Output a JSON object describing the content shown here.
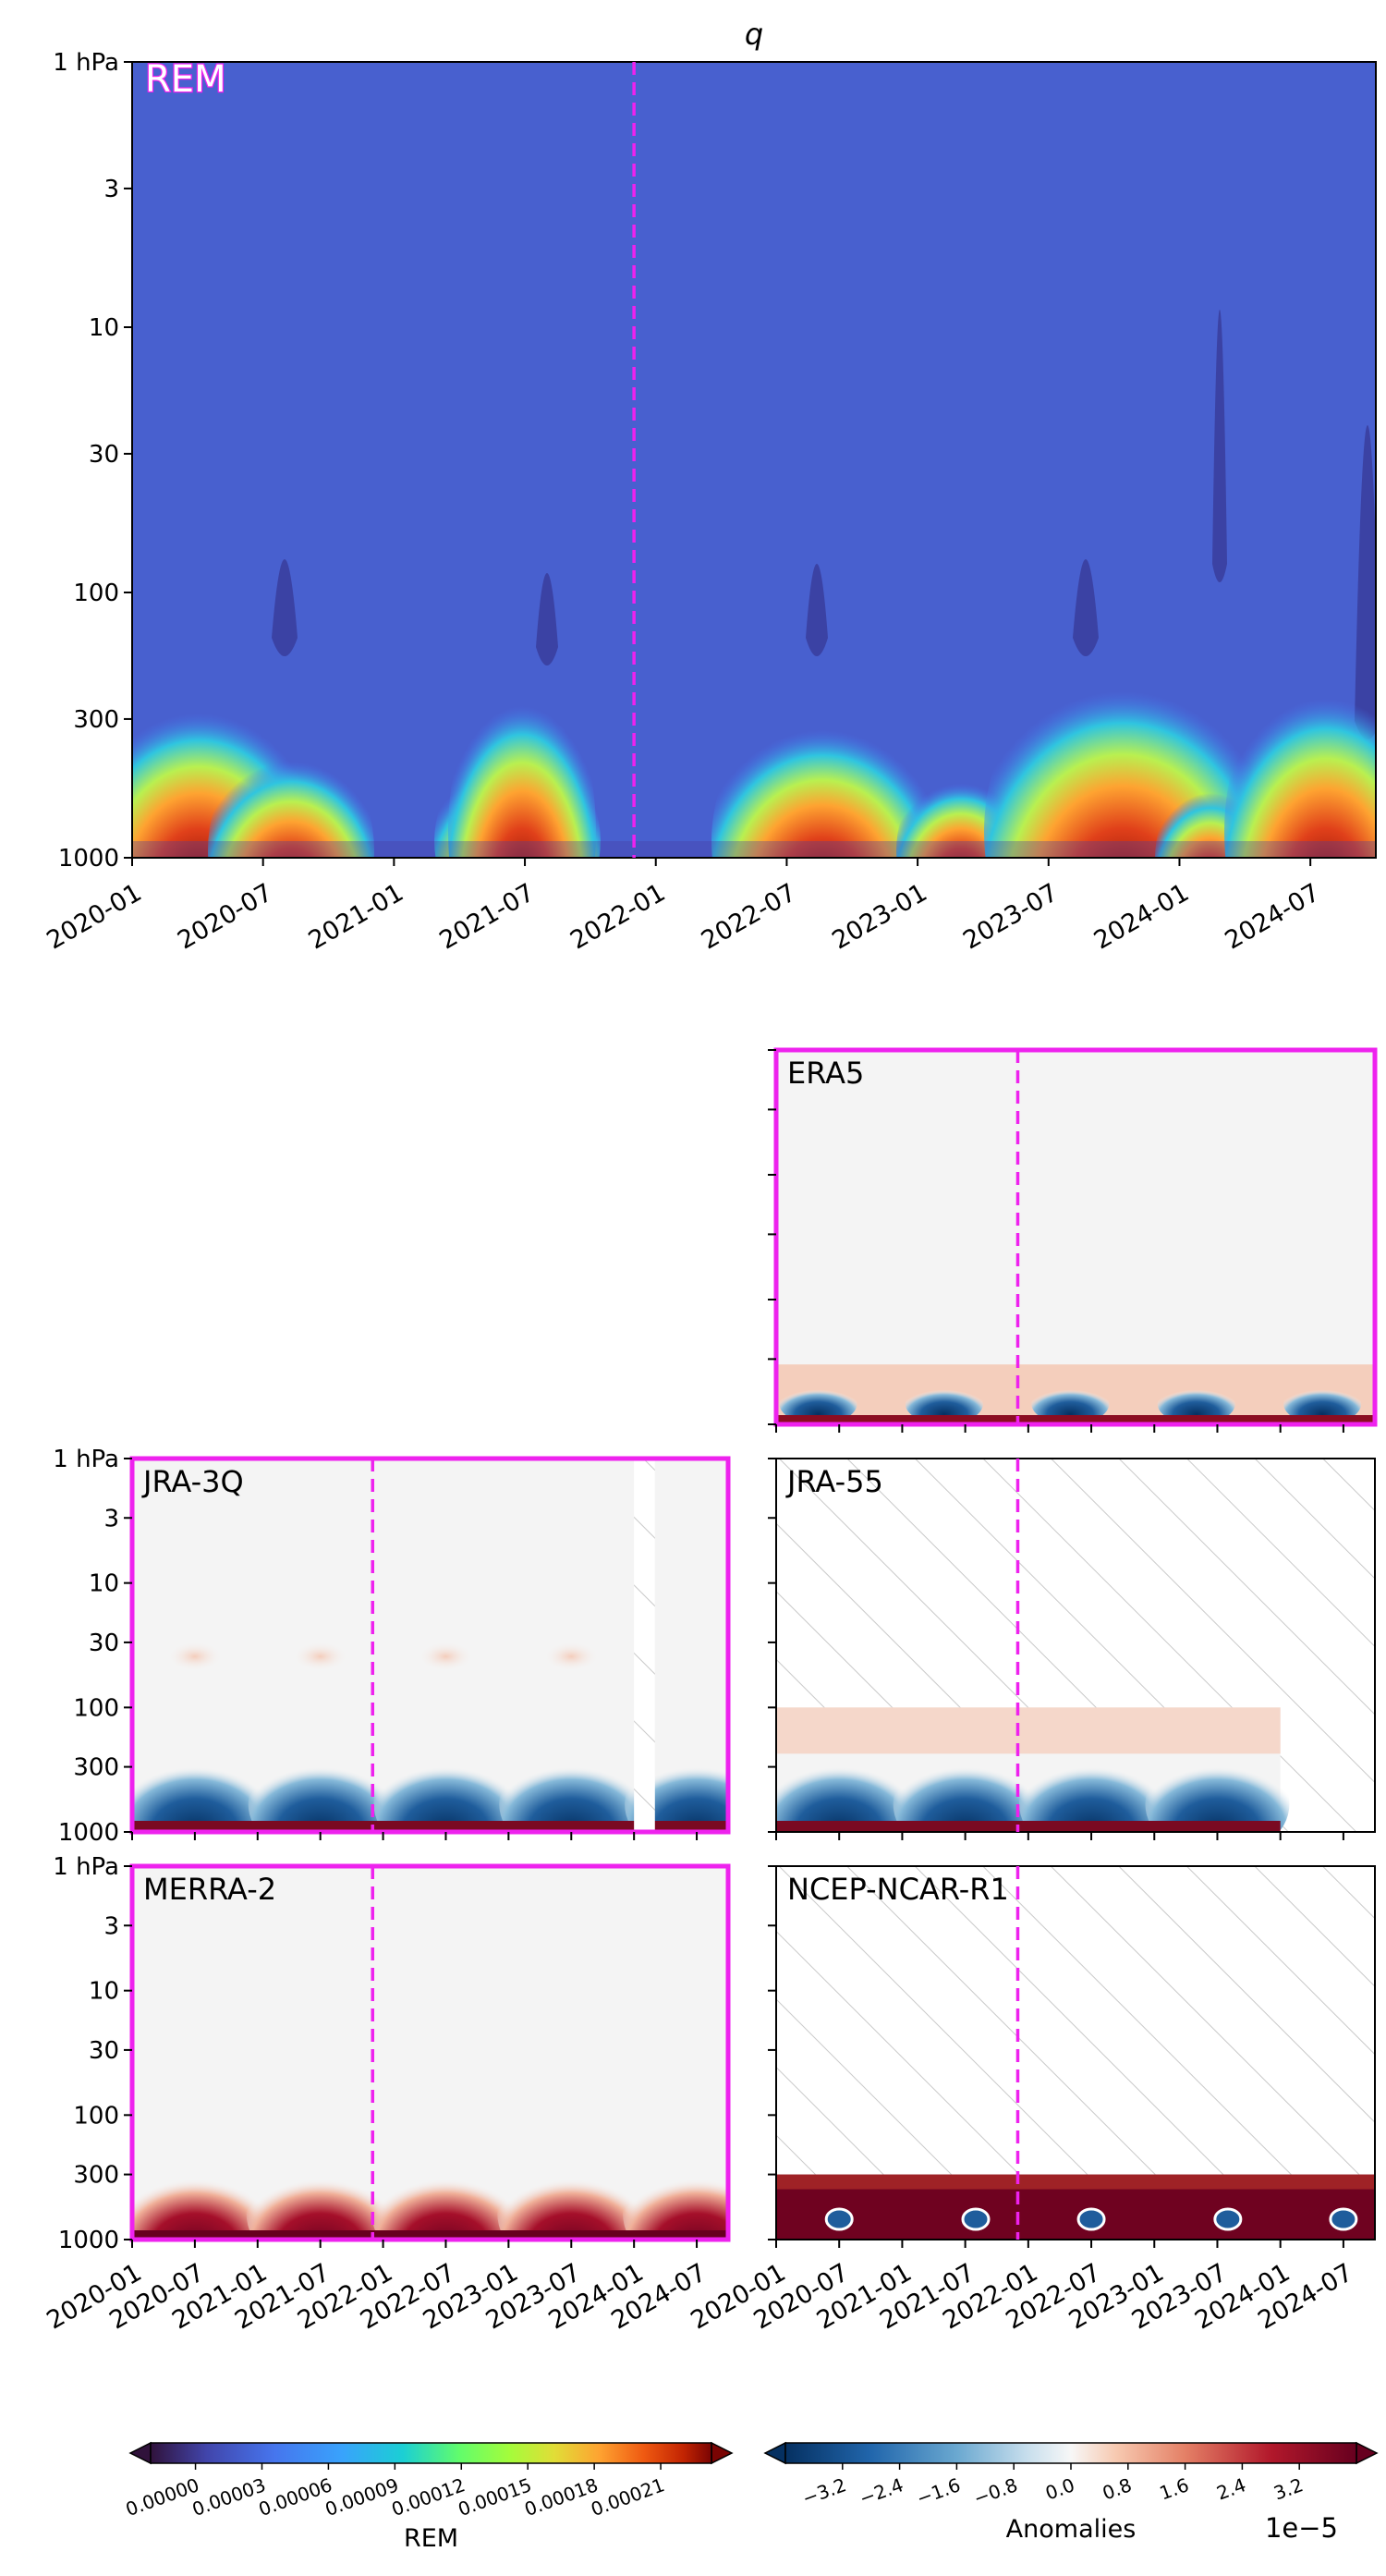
{
  "chart_data": [
    {
      "type": "heatmap",
      "panel": "main",
      "title": "q",
      "label": "REM",
      "x_ticks": [
        "2020-01",
        "2020-07",
        "2021-01",
        "2021-07",
        "2022-01",
        "2022-07",
        "2023-01",
        "2023-07",
        "2024-01",
        "2024-07"
      ],
      "y_ticks": [
        "1 hPa",
        "3",
        "10",
        "30",
        "100",
        "300",
        "1000"
      ],
      "y_scale": "log",
      "ylim": [
        1000,
        1
      ],
      "marker_date": "2021-12",
      "grid": false
    },
    {
      "type": "heatmap",
      "panel": "anomaly",
      "label": "ERA5",
      "highlighted": true,
      "show_y_labels": false,
      "show_x_labels": false,
      "marker_date": "2021-12"
    },
    {
      "type": "heatmap",
      "panel": "anomaly",
      "label": "JRA-3Q",
      "highlighted": true,
      "y_ticks": [
        "1 hPa",
        "3",
        "10",
        "30",
        "100",
        "300",
        "1000"
      ],
      "show_y_labels": true,
      "show_x_labels": false,
      "marker_date": "2021-12",
      "missing": "2024-01 to 2024-02"
    },
    {
      "type": "heatmap",
      "panel": "anomaly",
      "label": "JRA-55",
      "highlighted": false,
      "show_y_labels": false,
      "show_x_labels": false,
      "marker_date": "2021-12",
      "data_top_hPa": 100,
      "data_end": "2024-01"
    },
    {
      "type": "heatmap",
      "panel": "anomaly",
      "label": "MERRA-2",
      "highlighted": true,
      "y_ticks": [
        "1 hPa",
        "3",
        "10",
        "30",
        "100",
        "300",
        "1000"
      ],
      "show_y_labels": true,
      "show_x_labels": true,
      "marker_date": "2021-12",
      "x_ticks": [
        "2020-01",
        "2020-07",
        "2021-01",
        "2021-07",
        "2022-01",
        "2022-07",
        "2023-01",
        "2023-07",
        "2024-01",
        "2024-07"
      ]
    },
    {
      "type": "heatmap",
      "panel": "anomaly",
      "label": "NCEP-NCAR-R1",
      "highlighted": false,
      "show_y_labels": false,
      "show_x_labels": true,
      "marker_date": "2021-12",
      "data_top_hPa": 300,
      "x_ticks": [
        "2020-01",
        "2020-07",
        "2021-01",
        "2021-07",
        "2022-01",
        "2022-07",
        "2023-01",
        "2023-07",
        "2024-01",
        "2024-07"
      ]
    }
  ],
  "colorbars": {
    "rem": {
      "label": "REM",
      "ticks": [
        "0.00000",
        "0.00003",
        "0.00006",
        "0.00009",
        "0.00012",
        "0.00015",
        "0.00018",
        "0.00021"
      ]
    },
    "anomalies": {
      "label": "Anomalies",
      "offset": "1e−5",
      "ticks": [
        "−3.2",
        "−2.4",
        "−1.6",
        "−0.8",
        "0.0",
        "0.8",
        "1.6",
        "2.4",
        "3.2"
      ]
    }
  },
  "colors": {
    "highlight": "#ee22ee",
    "marker_line": "#ee22ee",
    "rem_background": "#4860cf",
    "anomaly_neutral": "#f4f4f4"
  }
}
